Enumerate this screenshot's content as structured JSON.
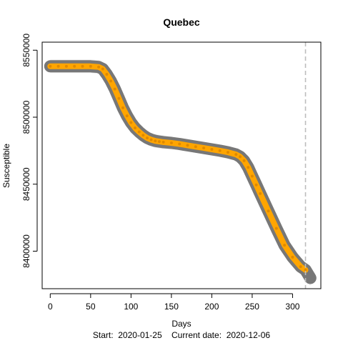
{
  "chart_data": {
    "type": "line",
    "title": "Quebec",
    "xlabel": "Days",
    "ylabel": "Susceptible",
    "footer": {
      "start_label": "Start:",
      "start_date": "2020-01-25",
      "current_label": "Current date:",
      "current_date": "2020-12-06"
    },
    "xlim": [
      -10,
      335
    ],
    "ylim": [
      8372000,
      8556000
    ],
    "x_ticks": [
      0,
      50,
      100,
      150,
      200,
      250,
      300
    ],
    "y_ticks": [
      8400000,
      8450000,
      8500000,
      8550000
    ],
    "vline_x": 316,
    "grid": false,
    "legend": "none",
    "colors": {
      "series": "#ffa500",
      "band": "#777777",
      "vline": "#bdbdbd",
      "axis": "#000000"
    },
    "series": [
      {
        "x": [
          0,
          10,
          20,
          30,
          40,
          50,
          60,
          65,
          70,
          75,
          80,
          85,
          90,
          95,
          100,
          105,
          110,
          115,
          120,
          125,
          130,
          135,
          140,
          150,
          160,
          170,
          180,
          190,
          200,
          210,
          220,
          230,
          235,
          240,
          245,
          250,
          255,
          260,
          270,
          280,
          290,
          300,
          310,
          316
        ],
        "values": [
          8538000,
          8538000,
          8538000,
          8538000,
          8538000,
          8538000,
          8537500,
          8536000,
          8532000,
          8527000,
          8521000,
          8514000,
          8507000,
          8501000,
          8496000,
          8492000,
          8489000,
          8486500,
          8484500,
          8483200,
          8482300,
          8481800,
          8481400,
          8480800,
          8480000,
          8479000,
          8478000,
          8477000,
          8476000,
          8475000,
          8473800,
          8472200,
          8470500,
          8467500,
          8462500,
          8456000,
          8449500,
          8443000,
          8430000,
          8417000,
          8404500,
          8395500,
          8388500,
          8386000
        ]
      }
    ],
    "band": {
      "x": [
        0,
        10,
        20,
        30,
        40,
        50,
        60,
        65,
        70,
        75,
        80,
        85,
        90,
        95,
        100,
        105,
        110,
        115,
        120,
        125,
        130,
        135,
        140,
        150,
        160,
        170,
        180,
        190,
        200,
        210,
        220,
        230,
        235,
        240,
        245,
        250,
        255,
        260,
        270,
        280,
        290,
        300,
        310,
        316,
        322
      ],
      "center": [
        8538000,
        8538000,
        8538000,
        8538000,
        8538000,
        8538000,
        8537500,
        8536000,
        8532000,
        8527000,
        8521000,
        8514000,
        8507000,
        8501000,
        8496000,
        8492000,
        8489000,
        8486500,
        8484500,
        8483200,
        8482300,
        8481800,
        8481400,
        8480800,
        8480000,
        8479000,
        8478000,
        8477000,
        8476000,
        8475000,
        8473800,
        8472200,
        8470500,
        8467500,
        8462500,
        8456000,
        8449500,
        8443000,
        8430000,
        8417000,
        8404500,
        8395500,
        8388500,
        8386000,
        8380000
      ],
      "halfwidth": [
        5000,
        5000,
        5000,
        5000,
        5000,
        5000,
        5000,
        5000,
        5000,
        5000,
        5000,
        5000,
        5000,
        5000,
        5000,
        5000,
        5000,
        5000,
        5000,
        5000,
        5000,
        5000,
        5000,
        4500,
        4500,
        4500,
        4500,
        4500,
        4500,
        4500,
        4500,
        4500,
        4500,
        4500,
        4500,
        4500,
        4500,
        4500,
        4500,
        4500,
        4500,
        4500,
        5000,
        5500,
        6000
      ]
    }
  }
}
